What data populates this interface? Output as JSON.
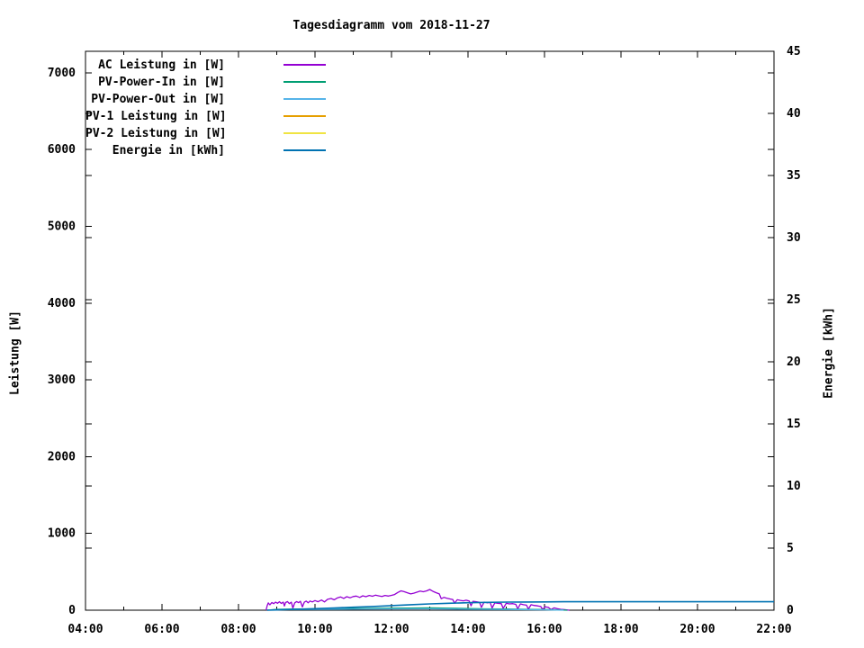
{
  "title": "Tagesdiagramm vom 2018-11-27",
  "chart_data": {
    "type": "line",
    "title": "Tagesdiagramm vom 2018-11-27",
    "grid": false,
    "legend_position": "top-left-inside",
    "x_axis": {
      "unit": "time-of-day",
      "start_hour": 4,
      "end_hour": 22,
      "major_ticks": [
        {
          "hour": 4,
          "label": "04:00"
        },
        {
          "hour": 6,
          "label": "06:00"
        },
        {
          "hour": 8,
          "label": "08:00"
        },
        {
          "hour": 10,
          "label": "10:00"
        },
        {
          "hour": 12,
          "label": "12:00"
        },
        {
          "hour": 14,
          "label": "14:00"
        },
        {
          "hour": 16,
          "label": "16:00"
        },
        {
          "hour": 18,
          "label": "18:00"
        },
        {
          "hour": 20,
          "label": "20:00"
        },
        {
          "hour": 22,
          "label": "22:00"
        }
      ],
      "minor_tick_hours": [
        5,
        7,
        9,
        11,
        13,
        15,
        17,
        19,
        21
      ]
    },
    "y_left_axis": {
      "label": "Leistung [W]",
      "range": [
        0,
        7280
      ],
      "ticks": [
        0,
        1000,
        2000,
        3000,
        4000,
        5000,
        6000,
        7000
      ]
    },
    "y_right_axis": {
      "label": "Energie [kWh]",
      "range": [
        0,
        45
      ],
      "ticks": [
        0,
        5,
        10,
        15,
        20,
        25,
        30,
        35,
        40,
        45
      ]
    },
    "series": [
      {
        "name": "AC Leistung in [W]",
        "key": "ac-leistung",
        "color": "#9400D3",
        "axis": "left",
        "points": [
          [
            8.72,
            0
          ],
          [
            8.75,
            60
          ],
          [
            8.78,
            95
          ],
          [
            8.82,
            70
          ],
          [
            8.87,
            100
          ],
          [
            8.92,
            85
          ],
          [
            8.97,
            105
          ],
          [
            9.02,
            90
          ],
          [
            9.07,
            110
          ],
          [
            9.12,
            88
          ],
          [
            9.17,
            106
          ],
          [
            9.2,
            55
          ],
          [
            9.23,
            100
          ],
          [
            9.28,
            112
          ],
          [
            9.33,
            86
          ],
          [
            9.38,
            104
          ],
          [
            9.42,
            28
          ],
          [
            9.47,
            96
          ],
          [
            9.52,
            112
          ],
          [
            9.57,
            98
          ],
          [
            9.62,
            116
          ],
          [
            9.67,
            42
          ],
          [
            9.72,
            104
          ],
          [
            9.77,
            118
          ],
          [
            9.82,
            96
          ],
          [
            9.87,
            120
          ],
          [
            9.93,
            108
          ],
          [
            10.0,
            126
          ],
          [
            10.08,
            110
          ],
          [
            10.17,
            132
          ],
          [
            10.25,
            108
          ],
          [
            10.33,
            142
          ],
          [
            10.42,
            152
          ],
          [
            10.5,
            136
          ],
          [
            10.58,
            160
          ],
          [
            10.67,
            172
          ],
          [
            10.75,
            154
          ],
          [
            10.83,
            176
          ],
          [
            10.92,
            162
          ],
          [
            11.0,
            178
          ],
          [
            11.08,
            184
          ],
          [
            11.17,
            166
          ],
          [
            11.25,
            188
          ],
          [
            11.33,
            176
          ],
          [
            11.42,
            192
          ],
          [
            11.5,
            182
          ],
          [
            11.58,
            196
          ],
          [
            11.67,
            186
          ],
          [
            11.75,
            178
          ],
          [
            11.83,
            192
          ],
          [
            11.92,
            184
          ],
          [
            12.0,
            194
          ],
          [
            12.08,
            204
          ],
          [
            12.17,
            232
          ],
          [
            12.25,
            252
          ],
          [
            12.33,
            242
          ],
          [
            12.42,
            226
          ],
          [
            12.5,
            212
          ],
          [
            12.58,
            222
          ],
          [
            12.67,
            236
          ],
          [
            12.75,
            248
          ],
          [
            12.83,
            240
          ],
          [
            12.92,
            252
          ],
          [
            13.0,
            270
          ],
          [
            13.05,
            256
          ],
          [
            13.1,
            242
          ],
          [
            13.17,
            228
          ],
          [
            13.25,
            212
          ],
          [
            13.3,
            150
          ],
          [
            13.37,
            166
          ],
          [
            13.45,
            156
          ],
          [
            13.53,
            146
          ],
          [
            13.6,
            140
          ],
          [
            13.65,
            92
          ],
          [
            13.72,
            136
          ],
          [
            13.8,
            128
          ],
          [
            13.88,
            122
          ],
          [
            13.95,
            130
          ],
          [
            14.03,
            120
          ],
          [
            14.08,
            58
          ],
          [
            14.13,
            116
          ],
          [
            14.22,
            110
          ],
          [
            14.3,
            102
          ],
          [
            14.35,
            38
          ],
          [
            14.42,
            106
          ],
          [
            14.5,
            96
          ],
          [
            14.58,
            102
          ],
          [
            14.63,
            28
          ],
          [
            14.7,
            96
          ],
          [
            14.78,
            90
          ],
          [
            14.87,
            86
          ],
          [
            14.92,
            24
          ],
          [
            15.0,
            90
          ],
          [
            15.08,
            82
          ],
          [
            15.17,
            86
          ],
          [
            15.25,
            76
          ],
          [
            15.3,
            18
          ],
          [
            15.37,
            82
          ],
          [
            15.45,
            72
          ],
          [
            15.53,
            66
          ],
          [
            15.58,
            14
          ],
          [
            15.65,
            72
          ],
          [
            15.73,
            62
          ],
          [
            15.82,
            56
          ],
          [
            15.9,
            48
          ],
          [
            15.95,
            10
          ],
          [
            16.02,
            44
          ],
          [
            16.1,
            36
          ],
          [
            16.17,
            8
          ],
          [
            16.25,
            30
          ],
          [
            16.33,
            20
          ],
          [
            16.42,
            12
          ],
          [
            16.5,
            8
          ],
          [
            16.58,
            4
          ],
          [
            16.65,
            0
          ]
        ]
      },
      {
        "name": "PV-Power-In in [W]",
        "key": "pv-power-in",
        "color": "#009E73",
        "axis": "left",
        "points": [
          [
            8.75,
            0
          ],
          [
            9.0,
            12
          ],
          [
            9.5,
            16
          ],
          [
            10.0,
            18
          ],
          [
            10.5,
            20
          ],
          [
            11.0,
            22
          ],
          [
            11.5,
            24
          ],
          [
            12.0,
            26
          ],
          [
            12.5,
            28
          ],
          [
            13.0,
            30
          ],
          [
            13.5,
            26
          ],
          [
            14.0,
            22
          ],
          [
            14.5,
            18
          ],
          [
            15.0,
            15
          ],
          [
            15.5,
            12
          ],
          [
            16.0,
            8
          ],
          [
            16.4,
            4
          ],
          [
            16.6,
            0
          ]
        ]
      },
      {
        "name": "PV-Power-Out in [W]",
        "key": "pv-power-out",
        "color": "#56B4E9",
        "axis": "left",
        "points": [
          [
            8.75,
            0
          ],
          [
            9.0,
            7
          ],
          [
            10.0,
            10
          ],
          [
            11.0,
            13
          ],
          [
            12.0,
            16
          ],
          [
            13.0,
            18
          ],
          [
            13.5,
            15
          ],
          [
            14.0,
            12
          ],
          [
            15.0,
            9
          ],
          [
            16.0,
            5
          ],
          [
            16.5,
            0
          ]
        ]
      },
      {
        "name": "PV-1 Leistung in [W]",
        "key": "pv1-leistung",
        "color": "#E69F00",
        "axis": "left",
        "points": []
      },
      {
        "name": "PV-2 Leistung in [W]",
        "key": "pv2-leistung",
        "color": "#F0E442",
        "axis": "left",
        "points": []
      },
      {
        "name": "Energie in [kWh]",
        "key": "energie",
        "color": "#0072B2",
        "axis": "right",
        "points": [
          [
            8.75,
            0
          ],
          [
            9.0,
            0.02
          ],
          [
            9.5,
            0.07
          ],
          [
            10.0,
            0.12
          ],
          [
            10.5,
            0.18
          ],
          [
            11.0,
            0.24
          ],
          [
            11.5,
            0.3
          ],
          [
            12.0,
            0.37
          ],
          [
            12.5,
            0.44
          ],
          [
            13.0,
            0.51
          ],
          [
            13.5,
            0.56
          ],
          [
            14.0,
            0.6
          ],
          [
            14.5,
            0.63
          ],
          [
            15.0,
            0.65
          ],
          [
            15.5,
            0.66
          ],
          [
            16.0,
            0.67
          ],
          [
            16.5,
            0.68
          ],
          [
            22.0,
            0.68
          ]
        ]
      }
    ]
  }
}
